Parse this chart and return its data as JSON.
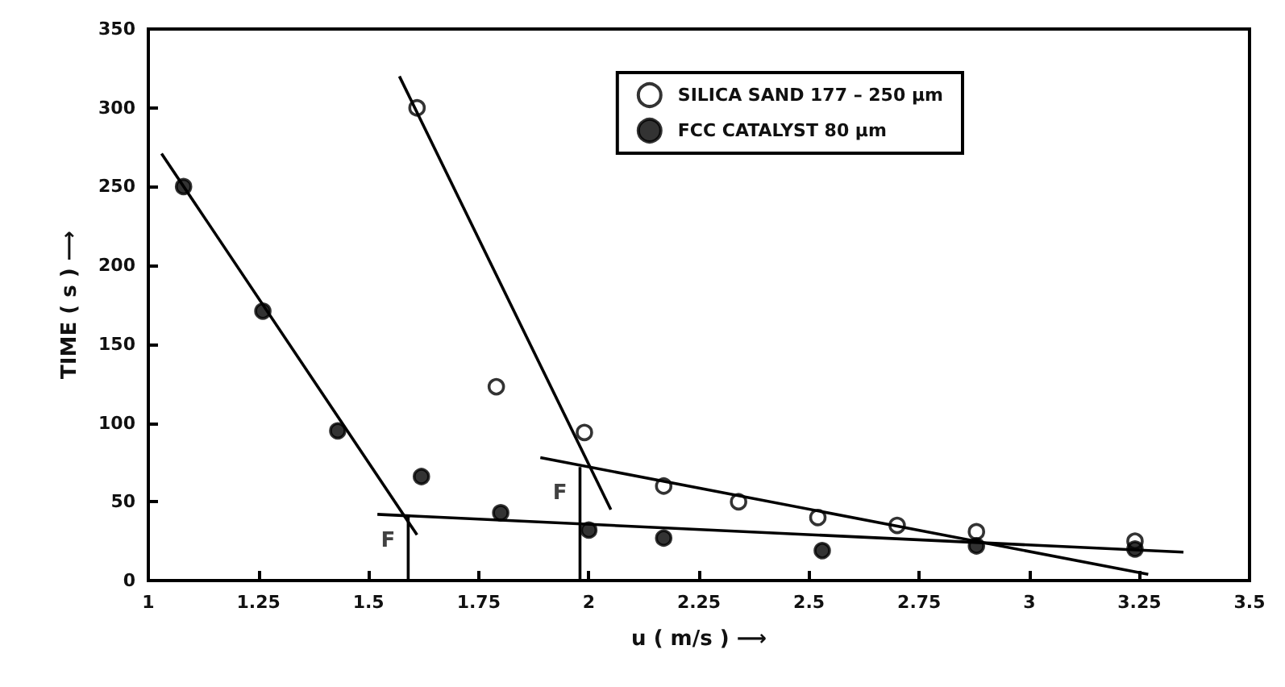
{
  "chart_data": {
    "type": "scatter",
    "xlabel": "u ( m/s ) ⟶",
    "ylabel": "TIME ( s ) ⟶",
    "xlim": [
      1,
      3.5
    ],
    "xticks": [
      1,
      1.25,
      1.5,
      1.75,
      2,
      2.25,
      2.5,
      2.75,
      3,
      3.25,
      3.5
    ],
    "ylim": [
      0,
      350
    ],
    "yticks": [
      0,
      50,
      100,
      150,
      200,
      250,
      300,
      350
    ],
    "grid": false,
    "legend": "top right",
    "marker": "circle",
    "series": [
      {
        "name": "SILICA SAND 177 – 250 μm",
        "color": "#ffffff",
        "x": [
          1.61,
          1.79,
          1.99,
          2.17,
          2.34,
          2.52,
          2.7,
          2.88,
          3.24
        ],
        "values": [
          300,
          123,
          94,
          60,
          50,
          40,
          35,
          31,
          25
        ]
      },
      {
        "name": "FCC CATALYST 80 μm",
        "color": "#000000",
        "x": [
          1.08,
          1.26,
          1.43,
          1.62,
          1.8,
          2.0,
          2.17,
          2.53,
          2.88,
          3.24
        ],
        "values": [
          250,
          171,
          95,
          66,
          43,
          32,
          27,
          19,
          22,
          20
        ]
      },
      {
        "type": "line",
        "color": "#000000",
        "marker": "none",
        "x": [
          1.03,
          1.61
        ],
        "values": [
          271,
          29
        ]
      },
      {
        "type": "line",
        "color": "#000000",
        "marker": "none",
        "x": [
          1.52,
          3.35
        ],
        "values": [
          42,
          18
        ]
      },
      {
        "type": "line",
        "color": "#000000",
        "marker": "none",
        "x": [
          1.57,
          2.05
        ],
        "values": [
          320,
          45
        ]
      },
      {
        "type": "line",
        "color": "#000000",
        "marker": "none",
        "x": [
          1.89,
          3.27
        ],
        "values": [
          78,
          4
        ]
      },
      {
        "type": "line",
        "color": "#000000",
        "marker": "none",
        "x": [
          1.59,
          1.59
        ],
        "values": [
          0,
          42
        ]
      },
      {
        "type": "line",
        "color": "#000000",
        "marker": "none",
        "x": [
          1.98,
          1.98
        ],
        "values": [
          0,
          72
        ]
      }
    ],
    "annotations": [
      {
        "text": "F",
        "x": 1.59,
        "y": 42
      },
      {
        "text": "F",
        "x": 1.98,
        "y": 72
      }
    ]
  }
}
